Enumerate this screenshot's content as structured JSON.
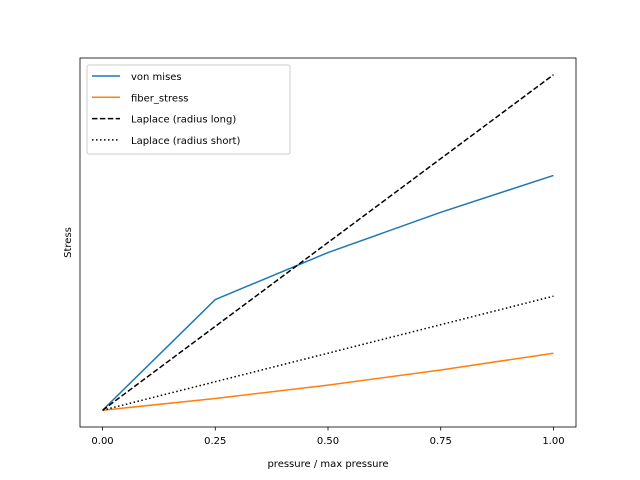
{
  "chart_data": {
    "type": "line",
    "xlabel": "pressure / max pressure",
    "ylabel": "Stress",
    "x_ticks": [
      "0.00",
      "0.25",
      "0.50",
      "0.75",
      "1.00"
    ],
    "xlim": [
      -0.05,
      1.05
    ],
    "ylim": [
      -0.05,
      1.05
    ],
    "y_ticks_visible": false,
    "grid": false,
    "legend_position": "top-left",
    "series": [
      {
        "name": "von mises",
        "color": "#1f77b4",
        "style": "solid",
        "x": [
          0.0,
          0.25,
          0.5,
          0.75,
          1.0
        ],
        "y": [
          0.0,
          0.33,
          0.47,
          0.59,
          0.7
        ]
      },
      {
        "name": "fiber_stress",
        "color": "#ff7f0e",
        "style": "solid",
        "x": [
          0.0,
          0.25,
          0.5,
          0.75,
          1.0
        ],
        "y": [
          0.0,
          0.035,
          0.075,
          0.12,
          0.17
        ]
      },
      {
        "name": "Laplace (radius long)",
        "color": "#000000",
        "style": "dashed",
        "x": [
          0.0,
          1.0
        ],
        "y": [
          0.0,
          1.0
        ]
      },
      {
        "name": "Laplace (radius short)",
        "color": "#000000",
        "style": "dotted",
        "x": [
          0.0,
          1.0
        ],
        "y": [
          0.0,
          0.34
        ]
      }
    ]
  }
}
